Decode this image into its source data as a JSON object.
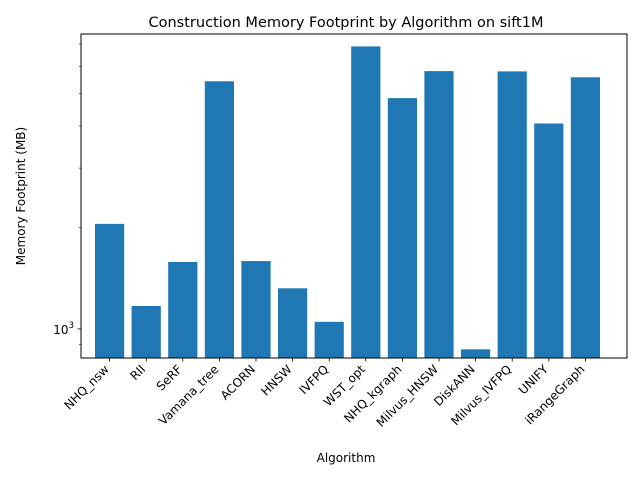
{
  "chart_data": {
    "type": "bar",
    "title": "Construction Memory Footprint by Algorithm on sift1M",
    "xlabel": "Algorithm",
    "ylabel": "Memory Footprint (MB)",
    "yscale": "log",
    "ylim": [
      820,
      7500
    ],
    "yticks": [
      {
        "value": 1000,
        "base": "10",
        "exp": "3"
      }
    ],
    "grid": false,
    "legend": "none",
    "bar_color": "#1f77b4",
    "categories": [
      "NHQ_nsw",
      "RII",
      "SeRF",
      "Vamana_tree",
      "ACORN",
      "HNSW",
      "IVFPQ",
      "WST_opt",
      "NHQ_kgraph",
      "Milvus_HNSW",
      "DiskANN",
      "Milvus_IVFPQ",
      "UNIFY",
      "iRangeGraph"
    ],
    "values": [
      2050,
      1170,
      1580,
      5430,
      1590,
      1320,
      1050,
      6890,
      4840,
      5820,
      870,
      5810,
      4070,
      5580
    ]
  }
}
